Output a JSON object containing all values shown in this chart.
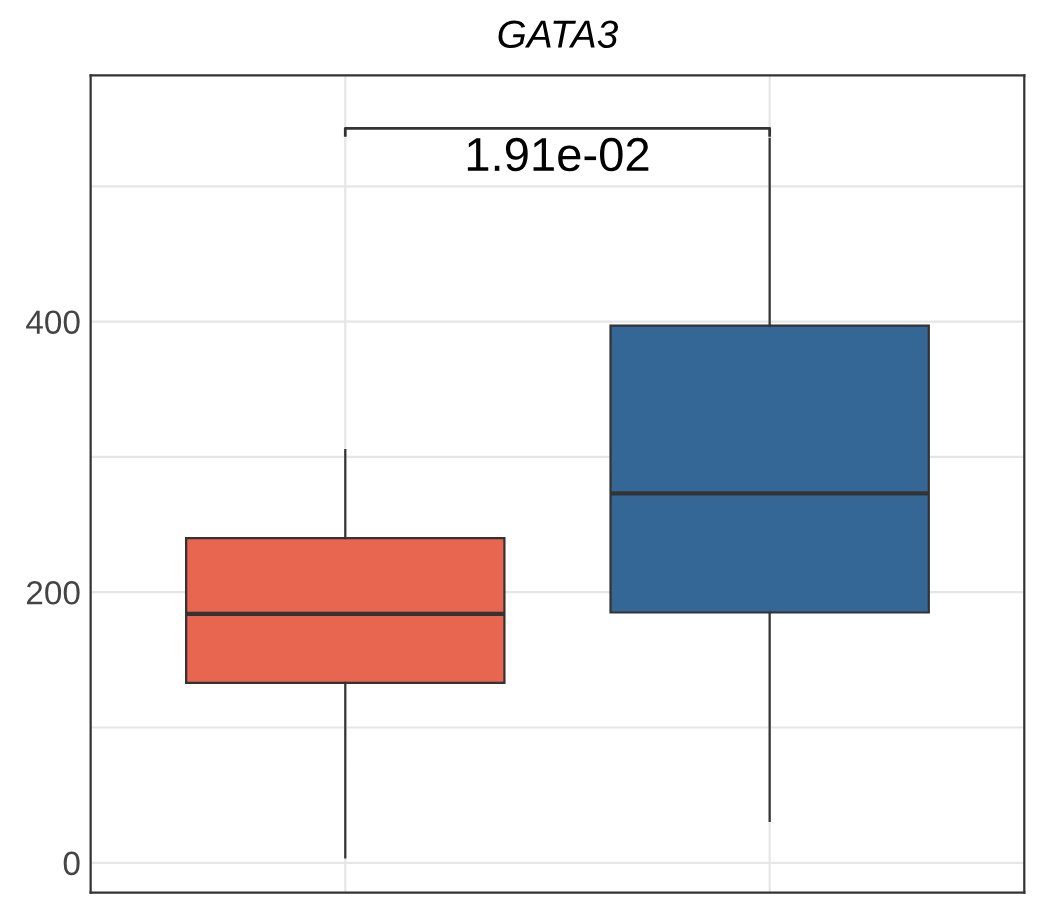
{
  "chart_data": {
    "type": "box",
    "title": "GATA3",
    "categories": [
      null,
      null
    ],
    "series": [
      {
        "color": "#e8654f",
        "boxes": [
          {
            "low": 4,
            "q1": 133,
            "median": 184,
            "q3": 240,
            "high": 305
          },
          null
        ]
      },
      {
        "color": "#356796",
        "boxes": [
          null,
          {
            "low": 31,
            "q1": 185,
            "median": 273,
            "q3": 397,
            "high": 535
          }
        ]
      }
    ],
    "ylim": [
      -22,
      582
    ],
    "yticks": [
      0,
      {
        "value": 100,
        "label": null
      },
      200,
      {
        "value": 300,
        "label": null
      },
      400,
      {
        "value": 500,
        "label": null
      }
    ],
    "grid": true,
    "annotations": [
      "1.91e-02"
    ]
  }
}
